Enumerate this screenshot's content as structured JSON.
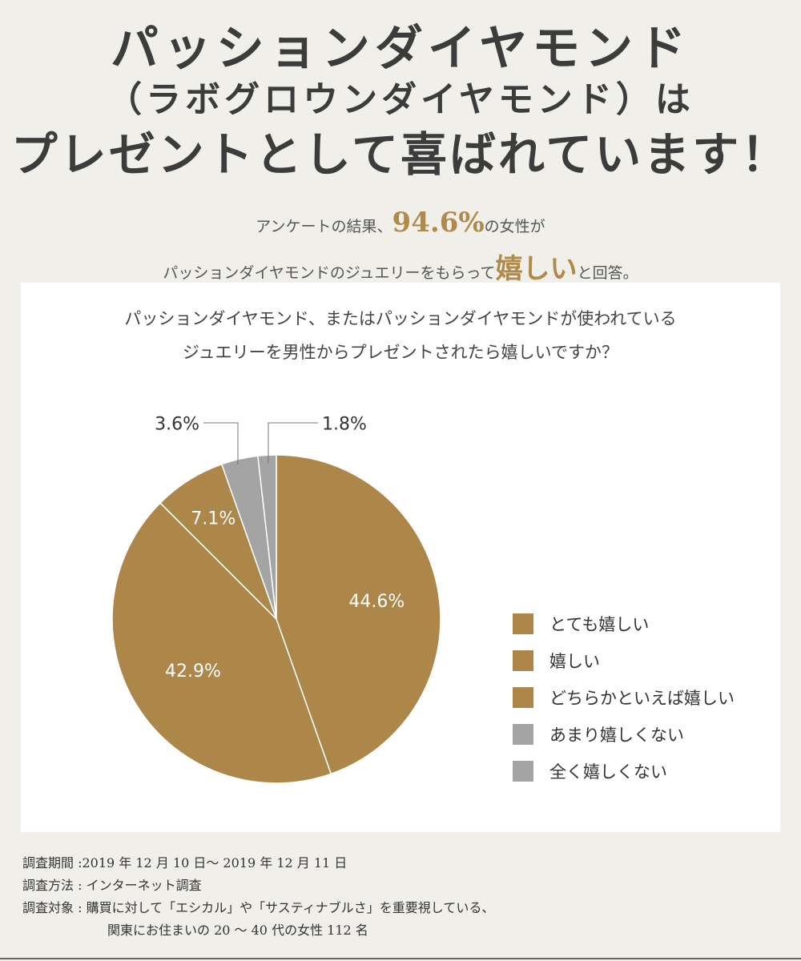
{
  "headline": {
    "line1": "パッションダイヤモンド",
    "line2": "（ラボグロウンダイヤモンド）は",
    "line3": "プレゼントとして喜ばれています！"
  },
  "lead": {
    "line1_prefix": "アンケートの結果、",
    "line1_value": "94.6%",
    "line1_suffix": "の女性が",
    "line2_prefix": "パッションダイヤモンドのジュエリーをもらって",
    "line2_highlight": "嬉しい",
    "line2_suffix": "と回答。"
  },
  "question": {
    "line1": "パッションダイヤモンド、またはパッションダイヤモンドが使われている",
    "line2": "ジュエリーを男性からプレゼントされたら嬉しいですか？"
  },
  "colors": {
    "positive": "#ad8649",
    "negative": "#a4a4a4",
    "accent": "#b08a4a"
  },
  "chart_data": {
    "type": "pie",
    "unit": "%",
    "slices": [
      {
        "name": "とても嬉しい",
        "value": 44.6,
        "label": "44.6%",
        "color": "#ad8649"
      },
      {
        "name": "嬉しい",
        "value": 42.9,
        "label": "42.9%",
        "color": "#ad8649"
      },
      {
        "name": "どちらかといえば嬉しい",
        "value": 7.1,
        "label": "7.1%",
        "color": "#ad8649"
      },
      {
        "name": "あまり嬉しくない",
        "value": 3.6,
        "label": "3.6%",
        "color": "#a4a4a4"
      },
      {
        "name": "全く嬉しくない",
        "value": 1.8,
        "label": "1.8%",
        "color": "#a4a4a4"
      }
    ],
    "start": "12 o'clock",
    "direction": "clockwise",
    "legend_position": "right"
  },
  "footer": {
    "period": "調査期間 :2019 年 12 月 10 日～ 2019 年 12 月 11 日",
    "method": "調査方法 : インターネット調査",
    "target_line1": "調査対象 : 購買に対して「エシカル」や「サスティナブルさ」を重要視している、",
    "target_line2": "関東にお住まいの 20 ～ 40 代の女性 112 名"
  }
}
